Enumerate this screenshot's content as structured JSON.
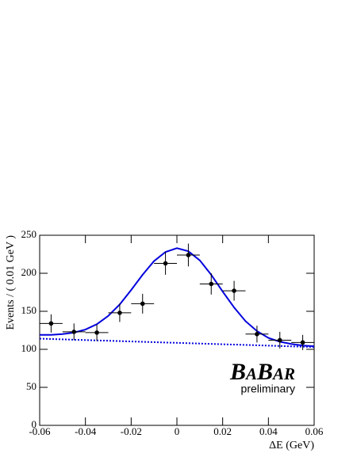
{
  "chart_data": {
    "type": "errorbar",
    "xlabel": "ΔE (GeV)",
    "ylabel": "Events / ( 0.01 GeV )",
    "logo": "BaBar",
    "logo_note": "preliminary",
    "xlim": [
      -0.06,
      0.06
    ],
    "ylim": [
      0,
      250
    ],
    "xticks": [
      -0.06,
      -0.04,
      -0.02,
      0,
      0.02,
      0.04,
      0.06
    ],
    "yticks": [
      0,
      50,
      100,
      150,
      200,
      250
    ],
    "points": {
      "color": "#000000",
      "x": [
        -0.055,
        -0.045,
        -0.035,
        -0.025,
        -0.015,
        -0.005,
        0.005,
        0.015,
        0.025,
        0.035,
        0.045,
        0.055
      ],
      "xerr": [
        0.005,
        0.005,
        0.005,
        0.005,
        0.005,
        0.005,
        0.005,
        0.005,
        0.005,
        0.005,
        0.005,
        0.005
      ],
      "values": [
        134,
        123,
        122,
        148,
        160,
        213,
        224,
        186,
        177,
        120,
        112,
        109
      ],
      "yerr": [
        12,
        11,
        11,
        12,
        13,
        15,
        15,
        14,
        13,
        11,
        11,
        10
      ]
    },
    "fit": {
      "color": "#0000dd",
      "x": [
        -0.06,
        -0.055,
        -0.05,
        -0.045,
        -0.04,
        -0.035,
        -0.03,
        -0.025,
        -0.02,
        -0.015,
        -0.01,
        -0.005,
        0,
        0.005,
        0.01,
        0.015,
        0.02,
        0.025,
        0.03,
        0.035,
        0.04,
        0.045,
        0.05,
        0.055,
        0.06
      ],
      "values": [
        119,
        119,
        120,
        122,
        126,
        133,
        144,
        159,
        178,
        198,
        216,
        228,
        233,
        229,
        217,
        198,
        176,
        155,
        137,
        124,
        115,
        110,
        107,
        105,
        104
      ]
    },
    "background": {
      "color": "#0000dd",
      "x": [
        -0.06,
        0.06
      ],
      "values": [
        114,
        103
      ]
    }
  }
}
